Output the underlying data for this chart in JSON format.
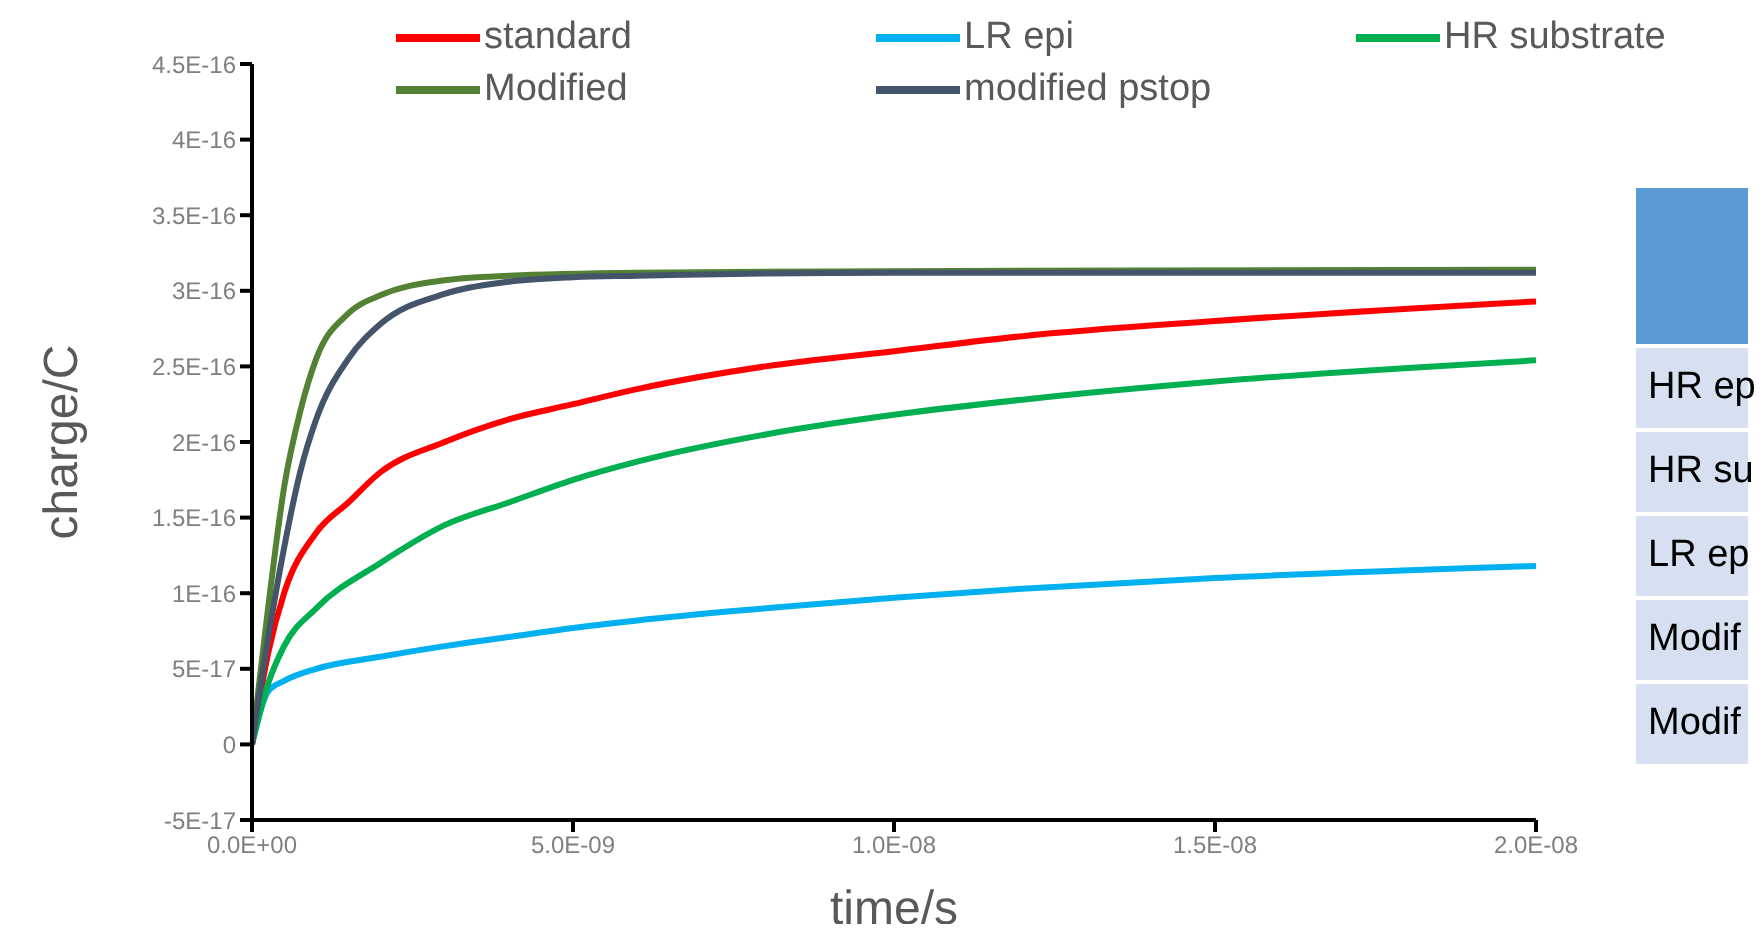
{
  "chart_data": {
    "type": "line",
    "xlabel": "time/s",
    "ylabel": "charge/C",
    "xlim": [
      0,
      2e-08
    ],
    "xticks": [
      {
        "value": 0,
        "label": "0.0E+00"
      },
      {
        "value": 5e-09,
        "label": "5.0E-09"
      },
      {
        "value": 1e-08,
        "label": "1.0E-08"
      },
      {
        "value": 1.5e-08,
        "label": "1.5E-08"
      },
      {
        "value": 2e-08,
        "label": "2.0E-08"
      }
    ],
    "ylim": [
      -5e-17,
      4.5e-16
    ],
    "yticks": [
      {
        "value": -5e-17,
        "label": "-5E-17"
      },
      0,
      {
        "value": 5e-17,
        "label": "5E-17"
      },
      {
        "value": 1e-16,
        "label": "1E-16"
      },
      {
        "value": 1.5e-16,
        "label": "1.5E-16"
      },
      {
        "value": 2e-16,
        "label": "2E-16"
      },
      {
        "value": 2.5e-16,
        "label": "2.5E-16"
      },
      {
        "value": 3e-16,
        "label": "3E-16"
      },
      {
        "value": 3.5e-16,
        "label": "3.5E-16"
      },
      {
        "value": 4e-16,
        "label": "4E-16"
      },
      {
        "value": 4.5e-16,
        "label": "4.5E-16"
      }
    ],
    "grid": false,
    "legend": "top",
    "marker": "none",
    "line_style": "solid",
    "annotations": [
      "HR ep",
      "HR su",
      "LR ep",
      "Modif",
      "Modif"
    ],
    "series": [
      {
        "name": "standard",
        "color": "#ff0000",
        "x": [
          0,
          2.5e-10,
          5e-10,
          1e-09,
          1.5e-09,
          2e-09,
          3e-09,
          4e-09,
          5e-09,
          6e-09,
          8e-09,
          1e-08,
          1.2e-08,
          1.5e-08,
          2e-08
        ],
        "values": [
          0,
          6e-17,
          1e-16,
          1.4e-16,
          1.6e-16,
          1.8e-16,
          2e-16,
          2.15e-16,
          2.25e-16,
          2.35e-16,
          2.5e-16,
          2.6e-16,
          2.7e-16,
          2.8e-16,
          2.93e-16
        ]
      },
      {
        "name": "LR epi",
        "color": "#00b0f0",
        "x": [
          0,
          2.5e-10,
          5e-10,
          1e-09,
          2e-09,
          3e-09,
          4e-09,
          5e-09,
          6e-09,
          8e-09,
          1e-08,
          1.2e-08,
          1.5e-08,
          2e-08
        ],
        "values": [
          0,
          3.5e-17,
          4.2e-17,
          5e-17,
          5.8e-17,
          6.5e-17,
          7.1e-17,
          7.7e-17,
          8.2e-17,
          9e-17,
          9.7e-17,
          1.03e-16,
          1.1e-16,
          1.18e-16
        ]
      },
      {
        "name": "HR substrate",
        "color": "#00b050",
        "x": [
          0,
          2.5e-10,
          5e-10,
          1e-09,
          2e-09,
          3e-09,
          4e-09,
          5e-09,
          6e-09,
          8e-09,
          1e-08,
          1.2e-08,
          1.5e-08,
          2e-08
        ],
        "values": [
          0,
          4e-17,
          6.5e-17,
          9e-17,
          1.2e-16,
          1.45e-16,
          1.6e-16,
          1.75e-16,
          1.87e-16,
          2.05e-16,
          2.18e-16,
          2.28e-16,
          2.4e-16,
          2.54e-16
        ]
      },
      {
        "name": "Modified",
        "color": "#548235",
        "x": [
          0,
          2.5e-10,
          5e-10,
          7.5e-10,
          1e-09,
          1.5e-09,
          2e-09,
          3e-09,
          4e-09,
          6e-09,
          1e-08,
          2e-08
        ],
        "values": [
          0,
          9e-17,
          1.7e-16,
          2.2e-16,
          2.55e-16,
          2.85e-16,
          2.97e-16,
          3.07e-16,
          3.1e-16,
          3.12e-16,
          3.13e-16,
          3.14e-16
        ]
      },
      {
        "name": "modified pstop",
        "color": "#44546a",
        "x": [
          0,
          2.5e-10,
          5e-10,
          7.5e-10,
          1e-09,
          1.5e-09,
          2e-09,
          3e-09,
          4e-09,
          5e-09,
          6e-09,
          1e-08,
          2e-08
        ],
        "values": [
          0,
          7e-17,
          1.3e-16,
          1.8e-16,
          2.15e-16,
          2.55e-16,
          2.78e-16,
          2.98e-16,
          3.06e-16,
          3.09e-16,
          3.1e-16,
          3.12e-16,
          3.12e-16
        ]
      }
    ]
  }
}
